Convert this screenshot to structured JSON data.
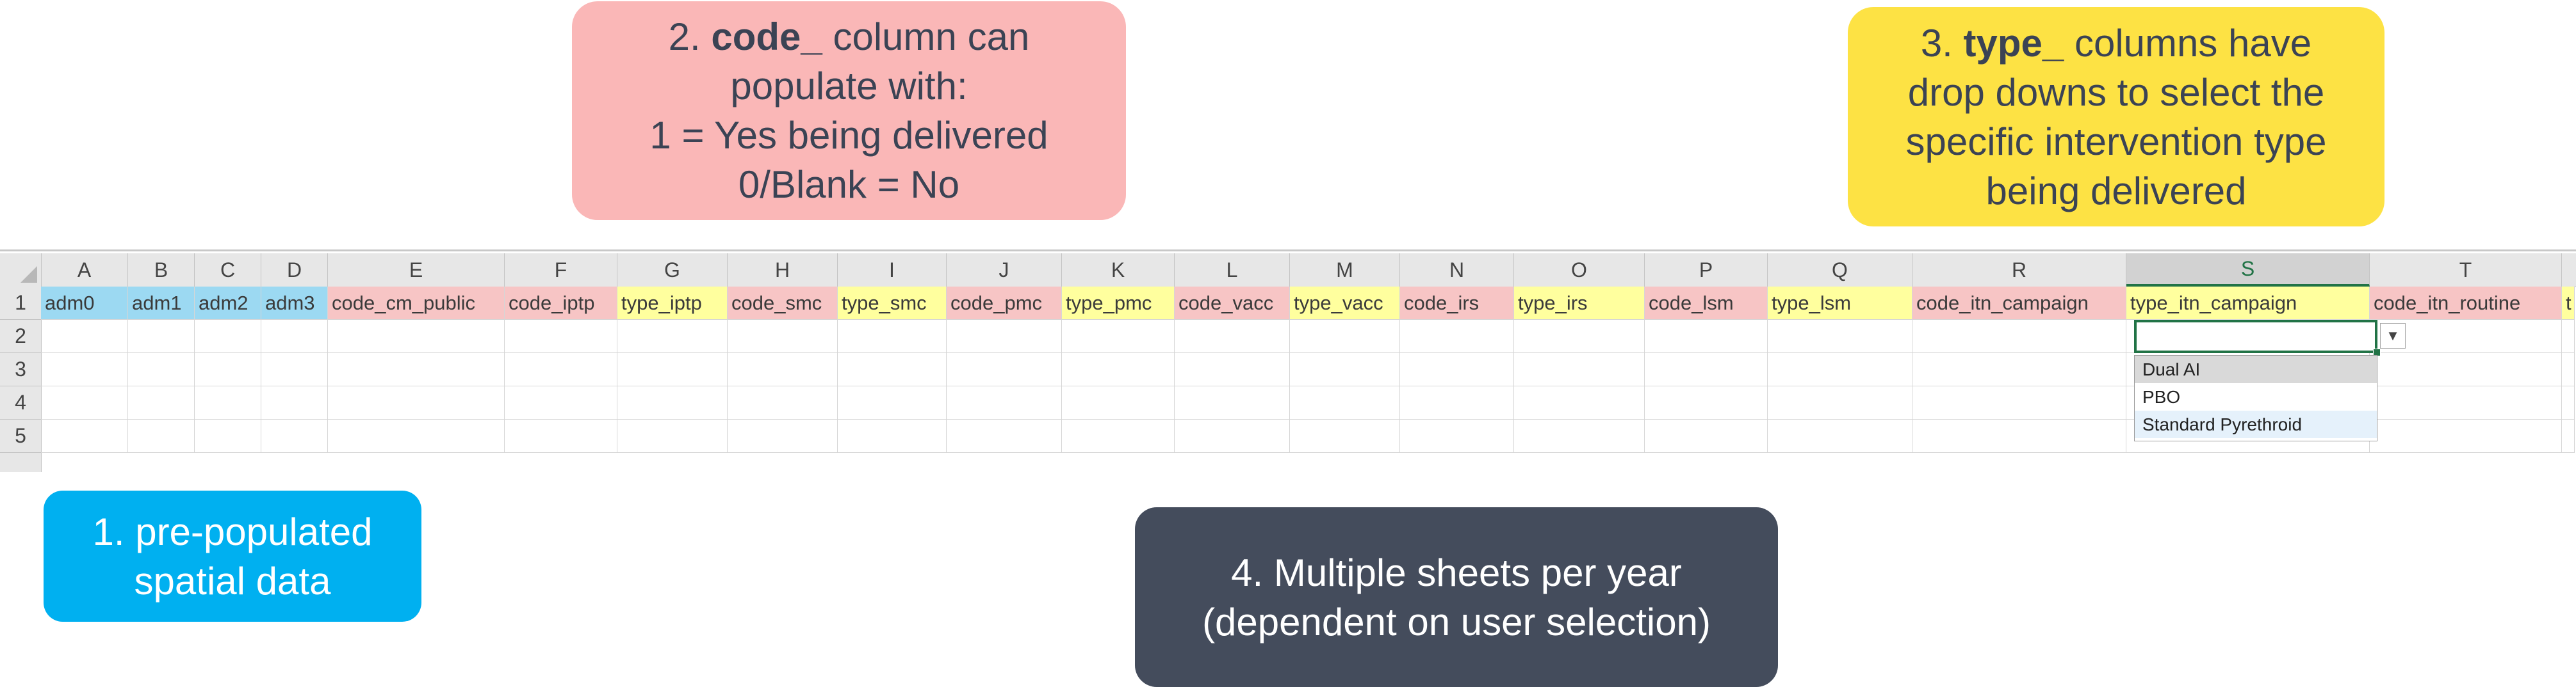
{
  "callouts": {
    "c1": [
      "1. pre-populated",
      "spatial data"
    ],
    "c2": [
      "2. ",
      "code_",
      " column can",
      "populate with:",
      "1 = Yes being delivered",
      "0/Blank = No"
    ],
    "c3": [
      "3. ",
      "type_",
      " columns have",
      "drop downs to select the",
      "specific intervention type",
      "being delivered"
    ],
    "c4": [
      "4. Multiple sheets per year",
      "(dependent on user selection)"
    ]
  },
  "spreadsheet": {
    "columns": [
      "A",
      "B",
      "C",
      "D",
      "E",
      "F",
      "G",
      "H",
      "I",
      "J",
      "K",
      "L",
      "M",
      "N",
      "O",
      "P",
      "Q",
      "R",
      "S",
      "T"
    ],
    "rows": [
      "1",
      "2",
      "3",
      "4",
      "5"
    ],
    "header_cells": [
      {
        "text": "adm0",
        "color": "blue"
      },
      {
        "text": "adm1",
        "color": "blue"
      },
      {
        "text": "adm2",
        "color": "blue"
      },
      {
        "text": "adm3",
        "color": "blue"
      },
      {
        "text": "code_cm_public",
        "color": "pink"
      },
      {
        "text": "code_iptp",
        "color": "pink"
      },
      {
        "text": "type_iptp",
        "color": "yellow"
      },
      {
        "text": "code_smc",
        "color": "pink"
      },
      {
        "text": "type_smc",
        "color": "yellow"
      },
      {
        "text": "code_pmc",
        "color": "pink"
      },
      {
        "text": "type_pmc",
        "color": "yellow"
      },
      {
        "text": "code_vacc",
        "color": "pink"
      },
      {
        "text": "type_vacc",
        "color": "yellow"
      },
      {
        "text": "code_irs",
        "color": "pink"
      },
      {
        "text": "type_irs",
        "color": "yellow"
      },
      {
        "text": "code_lsm",
        "color": "pink"
      },
      {
        "text": "type_lsm",
        "color": "yellow"
      },
      {
        "text": "code_itn_campaign",
        "color": "pink"
      },
      {
        "text": "type_itn_campaign",
        "color": "yellow"
      },
      {
        "text": "code_itn_routine",
        "color": "pink"
      },
      {
        "text": "t",
        "color": "yellow"
      }
    ],
    "active_column": "S",
    "dropdown_options": [
      "Dual AI",
      "PBO",
      "Standard Pyrethroid"
    ]
  },
  "colors": {
    "blue_header": "#9cd9f2",
    "pink_header": "#f7c5c5",
    "yellow_header": "#ffff9e",
    "excel_green": "#217346"
  }
}
